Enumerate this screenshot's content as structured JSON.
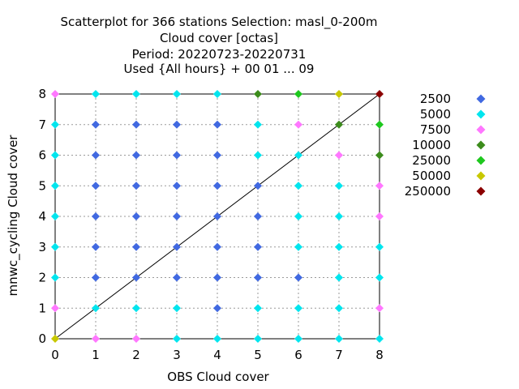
{
  "chart_data": {
    "type": "scatter",
    "title_lines": [
      "Scatterplot for  366 stations Selection: masl_0-200m",
      "Cloud cover [octas]",
      "Period: 20220723-20220731",
      "Used {All hours} + 00 01 ... 09"
    ],
    "xlabel": "OBS Cloud cover",
    "ylabel": "mnwc_cycling Cloud cover",
    "xlim": [
      0,
      8
    ],
    "ylim": [
      0,
      8
    ],
    "xticks": [
      "0",
      "1",
      "2",
      "3",
      "4",
      "5",
      "6",
      "7",
      "8"
    ],
    "yticks": [
      "0",
      "1",
      "2",
      "3",
      "4",
      "5",
      "6",
      "7",
      "8"
    ],
    "grid": true,
    "diagonal": true,
    "legend_position": "right",
    "legend": [
      {
        "label": "2500",
        "color": "#4169e1"
      },
      {
        "label": "5000",
        "color": "#00e5ee"
      },
      {
        "label": "7500",
        "color": "#ff77ff"
      },
      {
        "label": "10000",
        "color": "#3c8c1c"
      },
      {
        "label": "25000",
        "color": "#1ec81e"
      },
      {
        "label": "50000",
        "color": "#c8c800"
      },
      {
        "label": "250000",
        "color": "#8b0000"
      }
    ],
    "points": [
      {
        "x": 0,
        "y": 8,
        "bin": "7500"
      },
      {
        "x": 1,
        "y": 8,
        "bin": "5000"
      },
      {
        "x": 2,
        "y": 8,
        "bin": "5000"
      },
      {
        "x": 3,
        "y": 8,
        "bin": "5000"
      },
      {
        "x": 4,
        "y": 8,
        "bin": "5000"
      },
      {
        "x": 5,
        "y": 8,
        "bin": "10000"
      },
      {
        "x": 6,
        "y": 8,
        "bin": "25000"
      },
      {
        "x": 7,
        "y": 8,
        "bin": "50000"
      },
      {
        "x": 8,
        "y": 8,
        "bin": "250000"
      },
      {
        "x": 0,
        "y": 7,
        "bin": "5000"
      },
      {
        "x": 1,
        "y": 7,
        "bin": "2500"
      },
      {
        "x": 2,
        "y": 7,
        "bin": "2500"
      },
      {
        "x": 3,
        "y": 7,
        "bin": "2500"
      },
      {
        "x": 4,
        "y": 7,
        "bin": "2500"
      },
      {
        "x": 5,
        "y": 7,
        "bin": "5000"
      },
      {
        "x": 6,
        "y": 7,
        "bin": "7500"
      },
      {
        "x": 7,
        "y": 7,
        "bin": "10000"
      },
      {
        "x": 8,
        "y": 7,
        "bin": "25000"
      },
      {
        "x": 0,
        "y": 6,
        "bin": "5000"
      },
      {
        "x": 1,
        "y": 6,
        "bin": "2500"
      },
      {
        "x": 2,
        "y": 6,
        "bin": "2500"
      },
      {
        "x": 3,
        "y": 6,
        "bin": "2500"
      },
      {
        "x": 4,
        "y": 6,
        "bin": "2500"
      },
      {
        "x": 5,
        "y": 6,
        "bin": "5000"
      },
      {
        "x": 6,
        "y": 6,
        "bin": "5000"
      },
      {
        "x": 7,
        "y": 6,
        "bin": "7500"
      },
      {
        "x": 8,
        "y": 6,
        "bin": "10000"
      },
      {
        "x": 0,
        "y": 5,
        "bin": "5000"
      },
      {
        "x": 1,
        "y": 5,
        "bin": "2500"
      },
      {
        "x": 2,
        "y": 5,
        "bin": "2500"
      },
      {
        "x": 3,
        "y": 5,
        "bin": "2500"
      },
      {
        "x": 4,
        "y": 5,
        "bin": "2500"
      },
      {
        "x": 5,
        "y": 5,
        "bin": "2500"
      },
      {
        "x": 6,
        "y": 5,
        "bin": "5000"
      },
      {
        "x": 7,
        "y": 5,
        "bin": "5000"
      },
      {
        "x": 8,
        "y": 5,
        "bin": "7500"
      },
      {
        "x": 0,
        "y": 4,
        "bin": "5000"
      },
      {
        "x": 1,
        "y": 4,
        "bin": "2500"
      },
      {
        "x": 2,
        "y": 4,
        "bin": "2500"
      },
      {
        "x": 3,
        "y": 4,
        "bin": "2500"
      },
      {
        "x": 4,
        "y": 4,
        "bin": "2500"
      },
      {
        "x": 5,
        "y": 4,
        "bin": "2500"
      },
      {
        "x": 6,
        "y": 4,
        "bin": "5000"
      },
      {
        "x": 7,
        "y": 4,
        "bin": "5000"
      },
      {
        "x": 8,
        "y": 4,
        "bin": "7500"
      },
      {
        "x": 0,
        "y": 3,
        "bin": "5000"
      },
      {
        "x": 1,
        "y": 3,
        "bin": "2500"
      },
      {
        "x": 2,
        "y": 3,
        "bin": "2500"
      },
      {
        "x": 3,
        "y": 3,
        "bin": "2500"
      },
      {
        "x": 4,
        "y": 3,
        "bin": "2500"
      },
      {
        "x": 5,
        "y": 3,
        "bin": "2500"
      },
      {
        "x": 6,
        "y": 3,
        "bin": "5000"
      },
      {
        "x": 7,
        "y": 3,
        "bin": "5000"
      },
      {
        "x": 8,
        "y": 3,
        "bin": "5000"
      },
      {
        "x": 0,
        "y": 2,
        "bin": "5000"
      },
      {
        "x": 1,
        "y": 2,
        "bin": "2500"
      },
      {
        "x": 2,
        "y": 2,
        "bin": "2500"
      },
      {
        "x": 3,
        "y": 2,
        "bin": "2500"
      },
      {
        "x": 4,
        "y": 2,
        "bin": "2500"
      },
      {
        "x": 5,
        "y": 2,
        "bin": "2500"
      },
      {
        "x": 6,
        "y": 2,
        "bin": "2500"
      },
      {
        "x": 7,
        "y": 2,
        "bin": "5000"
      },
      {
        "x": 8,
        "y": 2,
        "bin": "5000"
      },
      {
        "x": 0,
        "y": 1,
        "bin": "7500"
      },
      {
        "x": 1,
        "y": 1,
        "bin": "5000"
      },
      {
        "x": 2,
        "y": 1,
        "bin": "5000"
      },
      {
        "x": 3,
        "y": 1,
        "bin": "5000"
      },
      {
        "x": 4,
        "y": 1,
        "bin": "2500"
      },
      {
        "x": 5,
        "y": 1,
        "bin": "5000"
      },
      {
        "x": 6,
        "y": 1,
        "bin": "5000"
      },
      {
        "x": 7,
        "y": 1,
        "bin": "5000"
      },
      {
        "x": 8,
        "y": 1,
        "bin": "7500"
      },
      {
        "x": 0,
        "y": 0,
        "bin": "50000"
      },
      {
        "x": 1,
        "y": 0,
        "bin": "7500"
      },
      {
        "x": 2,
        "y": 0,
        "bin": "7500"
      },
      {
        "x": 3,
        "y": 0,
        "bin": "5000"
      },
      {
        "x": 4,
        "y": 0,
        "bin": "5000"
      },
      {
        "x": 5,
        "y": 0,
        "bin": "5000"
      },
      {
        "x": 6,
        "y": 0,
        "bin": "5000"
      },
      {
        "x": 7,
        "y": 0,
        "bin": "5000"
      },
      {
        "x": 8,
        "y": 0,
        "bin": "5000"
      }
    ]
  }
}
